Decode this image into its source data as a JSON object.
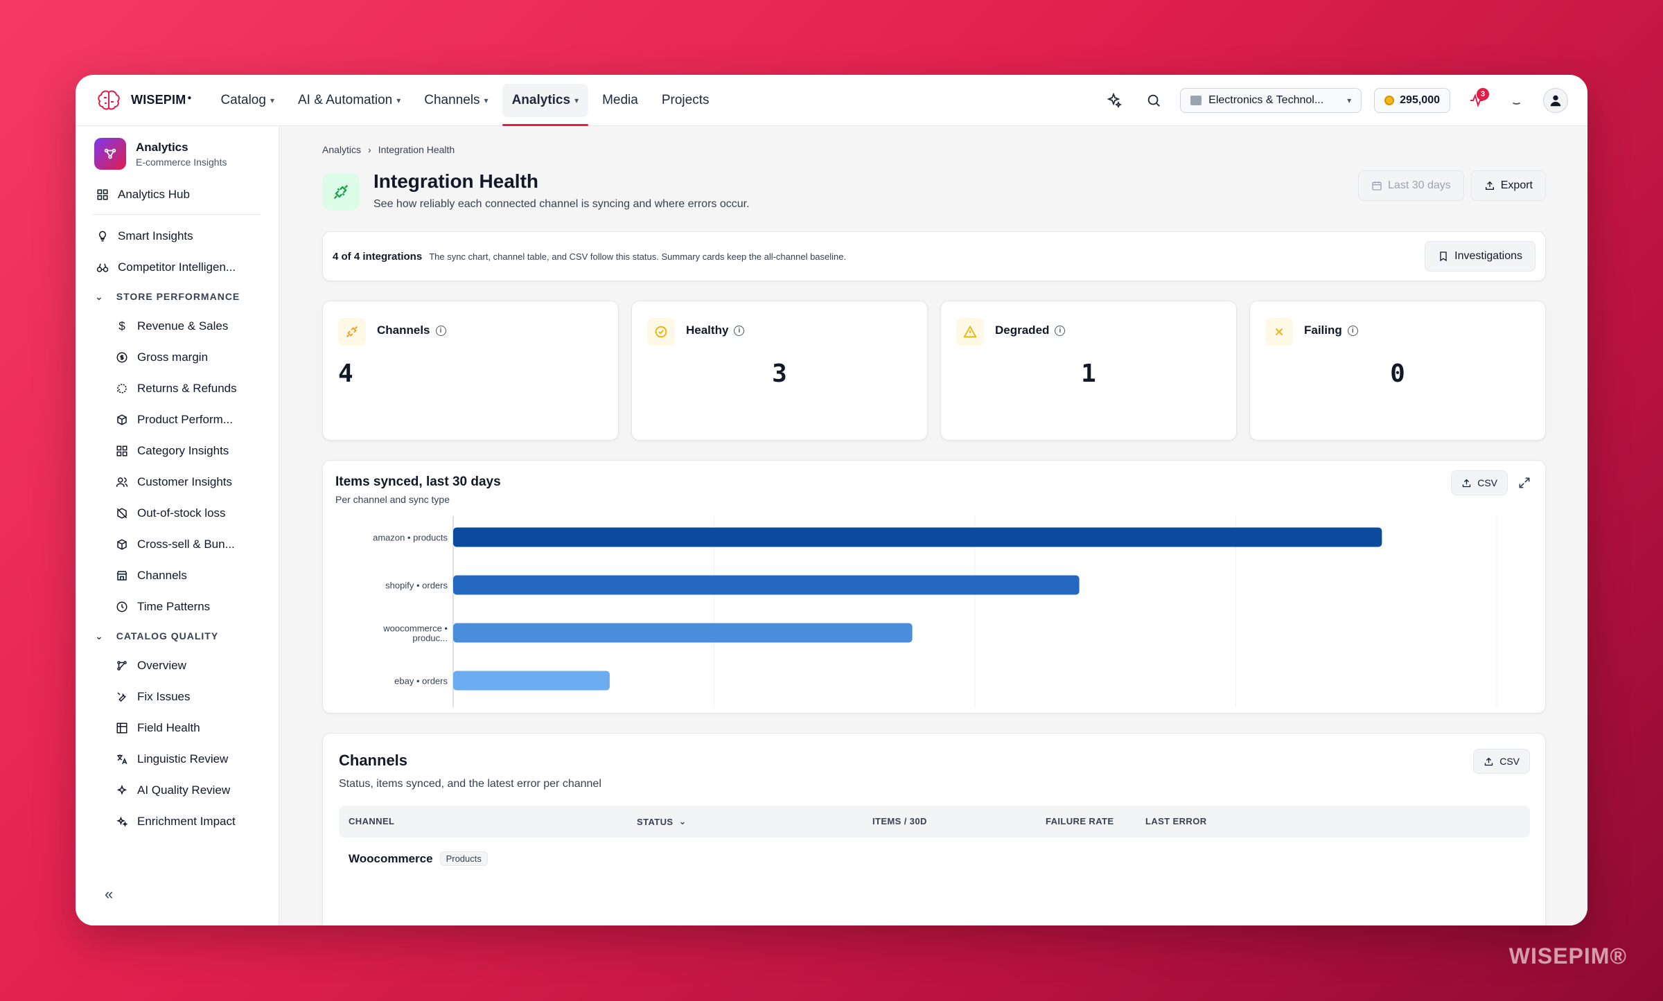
{
  "brand": {
    "name": "WISEPIM",
    "watermark": "WISEPIM®"
  },
  "nav": {
    "items": [
      {
        "label": "Catalog",
        "has_menu": true
      },
      {
        "label": "AI & Automation",
        "has_menu": true
      },
      {
        "label": "Channels",
        "has_menu": true
      },
      {
        "label": "Analytics",
        "has_menu": true,
        "active": true
      },
      {
        "label": "Media",
        "has_menu": false
      },
      {
        "label": "Projects",
        "has_menu": false
      }
    ],
    "workspace": "Electronics & Technol...",
    "credits": "295,000",
    "notifications_count": "3"
  },
  "sidebar": {
    "header_title": "Analytics",
    "header_sub": "E-commerce Insights",
    "hub": "Analytics Hub",
    "top_items": [
      "Smart Insights",
      "Competitor Intelligen..."
    ],
    "section_store": "STORE PERFORMANCE",
    "store_items": [
      "Revenue & Sales",
      "Gross margin",
      "Returns & Refunds",
      "Product Perform...",
      "Category Insights",
      "Customer Insights",
      "Out-of-stock loss",
      "Cross-sell & Bun...",
      "Channels",
      "Time Patterns"
    ],
    "section_catalog": "CATALOG QUALITY",
    "catalog_items": [
      "Overview",
      "Fix Issues",
      "Field Health",
      "Linguistic Review",
      "AI Quality Review",
      "Enrichment Impact"
    ],
    "collapse_glyph": "«"
  },
  "page": {
    "breadcrumb": [
      "Analytics",
      "Integration Health"
    ],
    "title": "Integration Health",
    "subtitle": "See how reliably each connected channel is syncing and where errors occur.",
    "range_label": "Last 30 days",
    "export_label": "Export"
  },
  "status_bar": {
    "count": "4 of 4 integrations",
    "text": "The sync chart, channel table, and CSV follow this status. Summary cards keep the all-channel baseline.",
    "button": "Investigations"
  },
  "cards": [
    {
      "label": "Channels",
      "value": "4",
      "icon": "plug-icon",
      "color": "#f59e0b",
      "bg": "#fef9e7"
    },
    {
      "label": "Healthy",
      "value": "3",
      "icon": "check-circle-icon",
      "color": "#eab308",
      "bg": "#fef9e7"
    },
    {
      "label": "Degraded",
      "value": "1",
      "icon": "warning-icon",
      "color": "#eab308",
      "bg": "#fef9e7"
    },
    {
      "label": "Failing",
      "value": "0",
      "icon": "x-icon",
      "color": "#eab308",
      "bg": "#fef9e7"
    }
  ],
  "chart_data": {
    "type": "bar",
    "orientation": "horizontal",
    "title": "Items synced, last 30 days",
    "subtitle": "Per channel and sync type",
    "categories": [
      "amazon • products",
      "shopify • orders",
      "woocommerce • produc...",
      "ebay • orders"
    ],
    "values": [
      890,
      600,
      440,
      150
    ],
    "colors": [
      "#0b4a9c",
      "#2568c2",
      "#4a8ddb",
      "#6aacef"
    ],
    "xlim": [
      0,
      1000
    ],
    "grid": true,
    "csv_label": "CSV"
  },
  "channels_table": {
    "title": "Channels",
    "subtitle": "Status, items synced, and the latest error per channel",
    "csv_label": "CSV",
    "columns": [
      "CHANNEL",
      "STATUS",
      "ITEMS / 30D",
      "FAILURE RATE",
      "LAST ERROR"
    ],
    "rows": [
      {
        "channel": "Woocommerce",
        "type": "Products"
      }
    ]
  }
}
